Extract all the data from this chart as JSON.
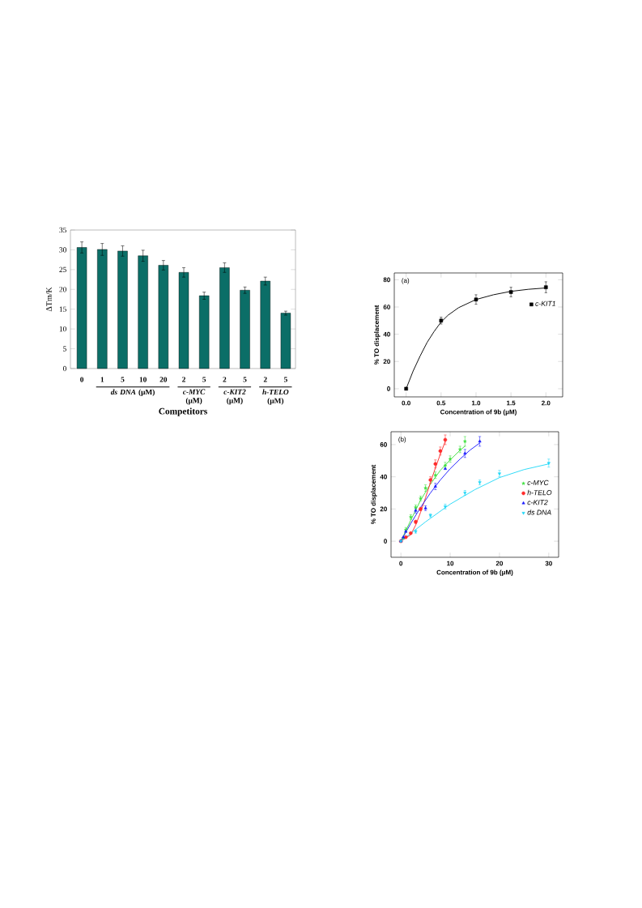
{
  "chart_data": [
    {
      "type": "bar",
      "xlabel": "Competitors",
      "ylabel": "ΔTm/K",
      "categories": [
        "0",
        "1",
        "5",
        "10",
        "20",
        "2",
        "5",
        "2",
        "5",
        "2",
        "5"
      ],
      "values": [
        30.6,
        30.1,
        29.7,
        28.5,
        26.1,
        24.3,
        18.4,
        25.5,
        19.8,
        22.1,
        14.0
      ],
      "errors": [
        1.4,
        1.5,
        1.3,
        1.4,
        1.2,
        1.2,
        0.9,
        1.2,
        0.8,
        1.0,
        0.5
      ],
      "color": "#0b6e67",
      "ylim": [
        0,
        35
      ],
      "yticks": [
        0,
        5,
        10,
        15,
        20,
        25,
        30,
        35
      ],
      "annotations": [
        "*ds DNA* (μM)",
        "*c-MYC* (μM)",
        "*c-KIT2* (μM)",
        "*h-TELO* (μM)"
      ]
    },
    {
      "type": "scatter",
      "xlabel": "Concentration of 9b (μM)",
      "ylabel": "% TO displacement",
      "series": [
        {
          "name": "c-KIT1",
          "color": "#000000",
          "marker": "square",
          "x": [
            0,
            0.5,
            1,
            1.5,
            2
          ],
          "values": [
            0,
            50,
            65.5,
            71,
            74.5
          ],
          "errors": [
            null,
            2.5,
            3.5,
            3.5,
            4
          ]
        },
        {
          "type": "line",
          "color": "#000000",
          "x": [
            0,
            0.1,
            0.2,
            0.3,
            0.4,
            0.5,
            0.6,
            0.75,
            1,
            1.25,
            1.5,
            1.75,
            2
          ],
          "values": [
            0,
            13,
            24,
            34,
            42,
            49,
            54,
            59.5,
            65.5,
            69,
            71.5,
            73,
            74
          ]
        }
      ],
      "xlim": [
        -0.17,
        2.24
      ],
      "ylim": [
        -6,
        85
      ],
      "xticks": [
        {
          "value": 0,
          "label": "0.0"
        },
        0.5,
        {
          "value": 1,
          "label": "1.0"
        },
        1.5,
        {
          "value": 2,
          "label": "2.0"
        }
      ],
      "yticks": [
        0,
        20,
        40,
        60,
        80
      ],
      "legend": "top right",
      "annotations": [
        "(a)"
      ]
    },
    {
      "type": "scatter",
      "xlabel": "Concentration of 9b (μM)",
      "ylabel": "% TO displacement",
      "series": [
        {
          "name": "c-MYC",
          "color": "#3ee03e",
          "marker": "star",
          "x": [
            0,
            0.5,
            1,
            2,
            3,
            4,
            5,
            7,
            9,
            10,
            12,
            13
          ],
          "values": [
            0,
            2,
            7,
            15,
            21,
            26.5,
            33,
            41,
            47,
            51,
            57,
            62
          ],
          "errors": [
            null,
            null,
            1.5,
            1.5,
            1.5,
            1.5,
            2,
            2,
            2,
            2,
            2,
            3
          ]
        },
        {
          "name": "h-TELO",
          "color": "#ff2a2a",
          "marker": "circle",
          "x": [
            0,
            1,
            2,
            3,
            4,
            6,
            7,
            8,
            9
          ],
          "values": [
            0,
            2.5,
            5,
            12,
            20,
            38,
            48,
            56,
            63
          ],
          "errors": [
            null,
            null,
            null,
            1,
            1,
            2,
            2.5,
            2.5,
            3
          ]
        },
        {
          "name": "c-KIT2",
          "color": "#1a1aff",
          "marker": "triangle",
          "x": [
            0,
            0.5,
            1,
            3,
            5,
            7,
            9,
            13,
            16
          ],
          "values": [
            0,
            2.5,
            6,
            19,
            20.5,
            34,
            45,
            54.5,
            62
          ],
          "errors": [
            null,
            null,
            null,
            1.5,
            1.5,
            2,
            null,
            2.5,
            3
          ]
        },
        {
          "name": "ds DNA",
          "color": "#22d8f8",
          "marker": "triangle-down",
          "x": [
            0,
            3,
            6,
            9,
            13,
            16,
            20,
            30
          ],
          "values": [
            0,
            6,
            16,
            21.5,
            30,
            36.5,
            42,
            48.5
          ],
          "errors": [
            null,
            1,
            1,
            1.5,
            1.5,
            1.5,
            2,
            2.5
          ]
        },
        {
          "type": "line",
          "color": "#3ee03e",
          "x": [
            0,
            2,
            4,
            6,
            8,
            10,
            12,
            13
          ],
          "values": [
            0,
            13,
            25.5,
            35.5,
            44,
            50.5,
            56.5,
            59
          ]
        },
        {
          "type": "line",
          "color": "#ff2a2a",
          "x": [
            0,
            2,
            3,
            4,
            5,
            6,
            7,
            8,
            9
          ],
          "values": [
            0,
            4,
            10,
            18,
            27,
            36.5,
            45.5,
            54,
            62
          ]
        },
        {
          "type": "line",
          "color": "#1a1aff",
          "x": [
            0,
            2,
            4,
            6,
            8,
            10,
            12,
            14,
            16
          ],
          "values": [
            0,
            11,
            21,
            30,
            38,
            45,
            51,
            56.5,
            61
          ]
        },
        {
          "type": "line",
          "color": "#22d8f8",
          "x": [
            0,
            5,
            10,
            15,
            20,
            25,
            30
          ],
          "values": [
            0,
            12,
            23,
            32,
            39.5,
            44.5,
            48
          ]
        }
      ],
      "xlim": [
        -2,
        32
      ],
      "ylim": [
        -10,
        68
      ],
      "xticks": [
        0,
        10,
        20,
        30
      ],
      "yticks": [
        0,
        20,
        40,
        60
      ],
      "legend": "right",
      "annotations": [
        "(b)"
      ]
    }
  ]
}
